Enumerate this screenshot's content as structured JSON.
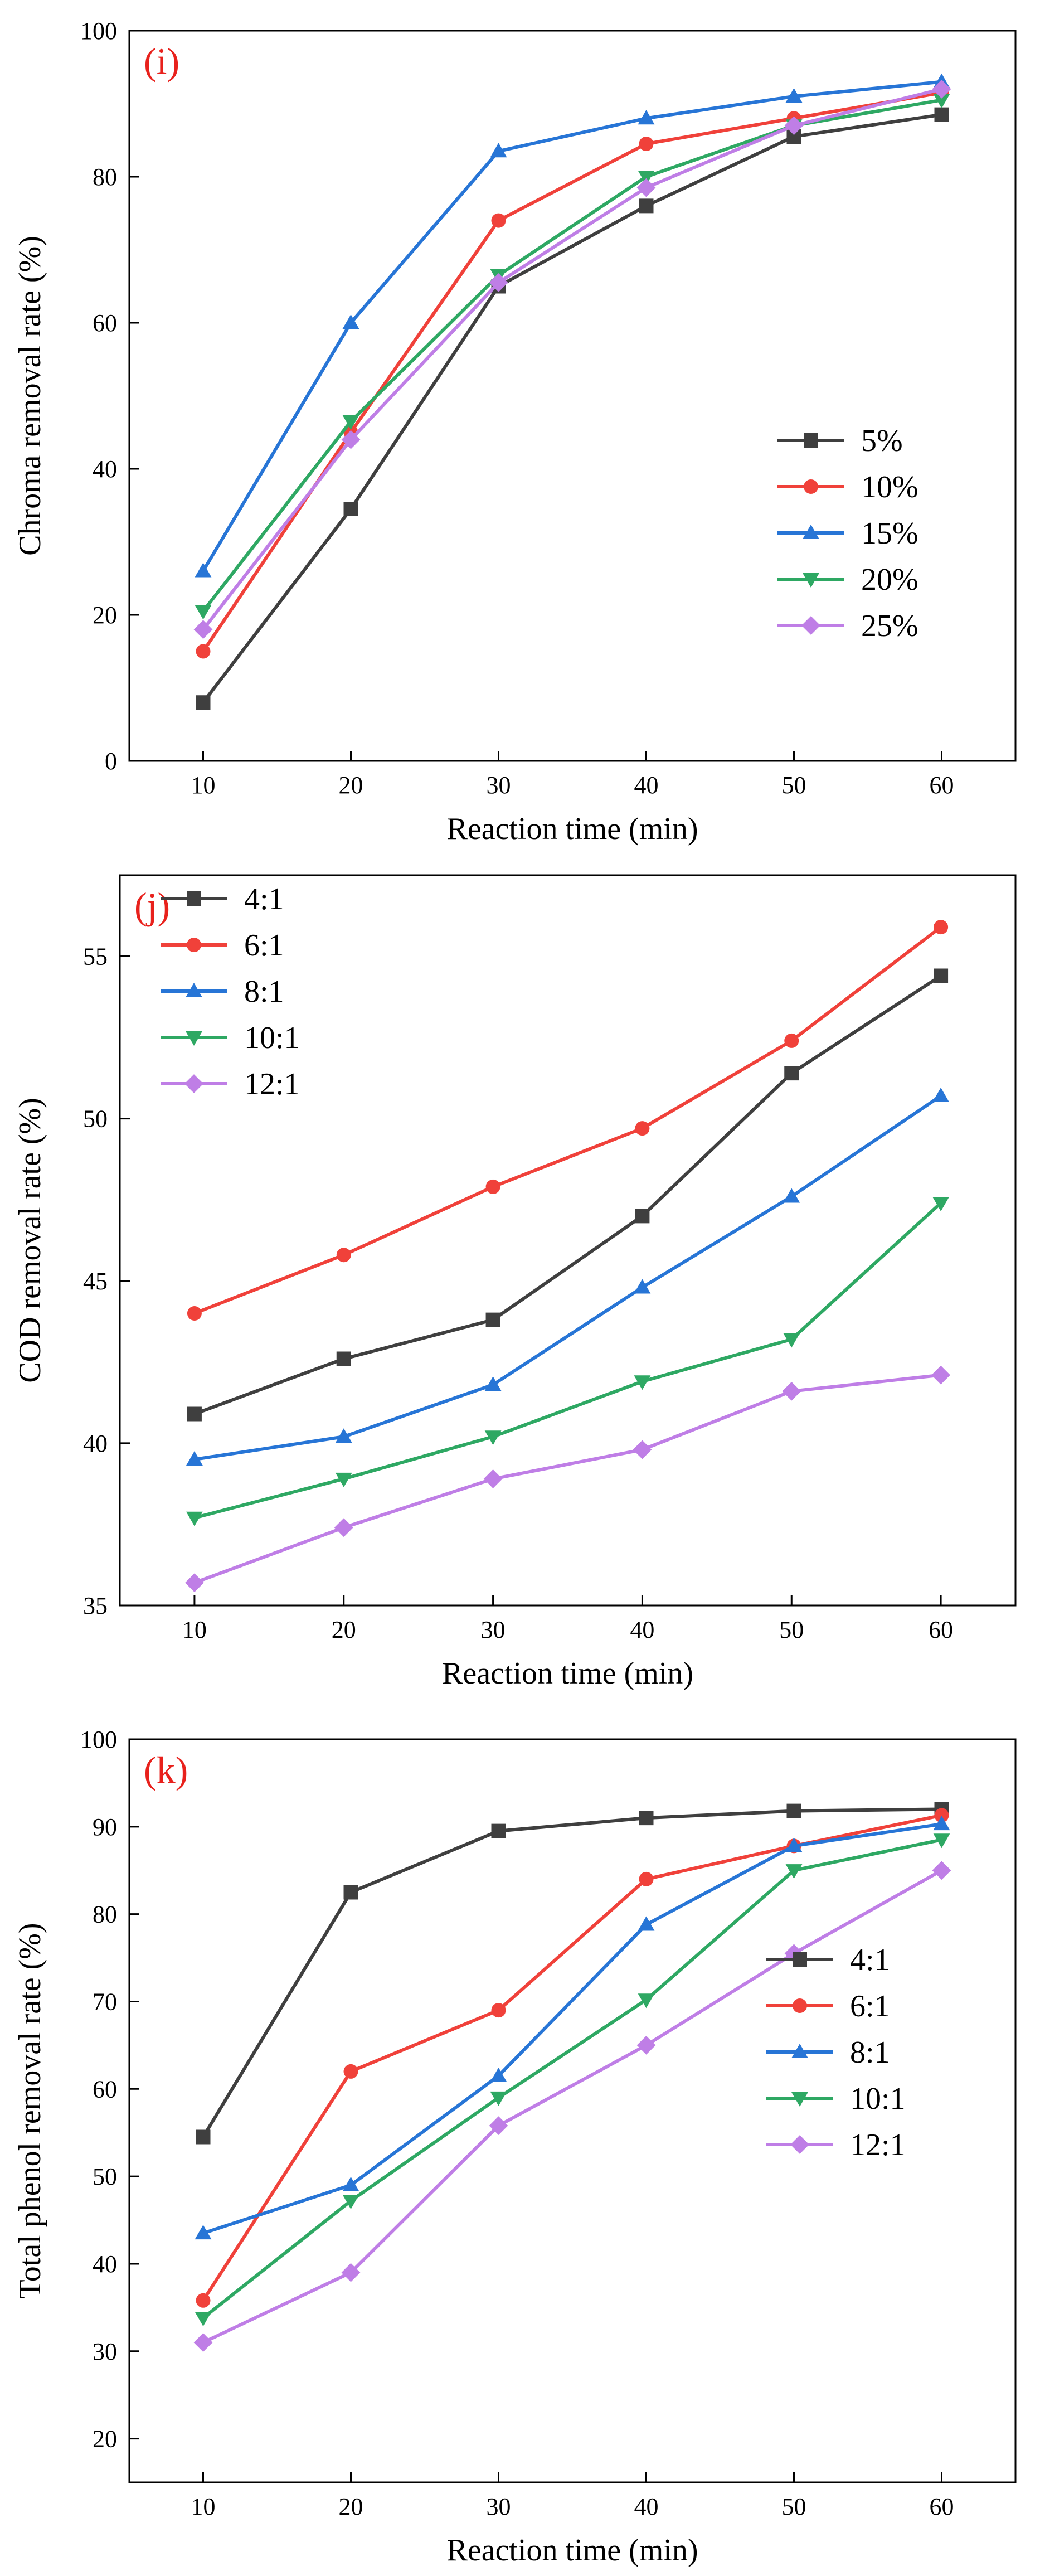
{
  "chart_data": [
    {
      "type": "line",
      "panel_tag": "(i)",
      "xlabel": "Reaction time (min)",
      "ylabel": "Chroma removal rate (%)",
      "xlim": [
        5,
        65
      ],
      "ylim": [
        0,
        100
      ],
      "xticks": [
        10,
        20,
        30,
        40,
        50,
        60
      ],
      "yticks": [
        0,
        20,
        40,
        60,
        80,
        100
      ],
      "legend_position": "lower-right",
      "x": [
        10,
        20,
        30,
        40,
        50,
        60
      ],
      "series": [
        {
          "name": "5%",
          "color": "#3f3f3f",
          "marker": "square",
          "values": [
            8,
            34.5,
            65,
            76,
            85.5,
            88.5
          ]
        },
        {
          "name": "10%",
          "color": "#f0413a",
          "marker": "circle",
          "values": [
            15,
            45,
            74,
            84.5,
            88,
            91.5
          ]
        },
        {
          "name": "15%",
          "color": "#2775d6",
          "marker": "triangle-up",
          "values": [
            26,
            60,
            83.5,
            88,
            91,
            93
          ]
        },
        {
          "name": "20%",
          "color": "#2ea863",
          "marker": "triangle-down",
          "values": [
            20.5,
            46.5,
            66.5,
            80,
            87,
            90.5
          ]
        },
        {
          "name": "25%",
          "color": "#bf7ee6",
          "marker": "diamond",
          "values": [
            18,
            44,
            65.5,
            78.5,
            87,
            92
          ]
        }
      ]
    },
    {
      "type": "line",
      "panel_tag": "(j)",
      "xlabel": "Reaction time (min)",
      "ylabel": "COD removal rate (%)",
      "xlim": [
        5,
        65
      ],
      "ylim": [
        35,
        57.5
      ],
      "xticks": [
        10,
        20,
        30,
        40,
        50,
        60
      ],
      "yticks": [
        35,
        40,
        45,
        50,
        55
      ],
      "legend_position": "top-left",
      "x": [
        10,
        20,
        30,
        40,
        50,
        60
      ],
      "series": [
        {
          "name": "4:1",
          "color": "#3f3f3f",
          "marker": "square",
          "values": [
            40.9,
            42.6,
            43.8,
            47,
            51.4,
            54.4
          ]
        },
        {
          "name": "6:1",
          "color": "#f0413a",
          "marker": "circle",
          "values": [
            44,
            45.8,
            47.9,
            49.7,
            52.4,
            55.9
          ]
        },
        {
          "name": "8:1",
          "color": "#2775d6",
          "marker": "triangle-up",
          "values": [
            39.5,
            40.2,
            41.8,
            44.8,
            47.6,
            50.7
          ]
        },
        {
          "name": "10:1",
          "color": "#2ea863",
          "marker": "triangle-down",
          "values": [
            37.7,
            38.9,
            40.2,
            41.9,
            43.2,
            47.4
          ]
        },
        {
          "name": "12:1",
          "color": "#bf7ee6",
          "marker": "diamond",
          "values": [
            35.7,
            37.4,
            38.9,
            39.8,
            41.6,
            42.1
          ]
        }
      ]
    },
    {
      "type": "line",
      "panel_tag": "(k)",
      "xlabel": "Reaction time (min)",
      "ylabel": "Total phenol removal rate (%)",
      "xlim": [
        5,
        65
      ],
      "ylim": [
        15,
        100
      ],
      "xticks": [
        10,
        20,
        30,
        40,
        50,
        60
      ],
      "yticks": [
        20,
        30,
        40,
        50,
        60,
        70,
        80,
        90,
        100
      ],
      "legend_position": "lower-right",
      "x": [
        10,
        20,
        30,
        40,
        50,
        60
      ],
      "series": [
        {
          "name": "4:1",
          "color": "#3f3f3f",
          "marker": "square",
          "values": [
            54.5,
            82.5,
            89.5,
            91,
            91.8,
            92
          ]
        },
        {
          "name": "6:1",
          "color": "#f0413a",
          "marker": "circle",
          "values": [
            35.8,
            62,
            69,
            84,
            87.8,
            91.3
          ]
        },
        {
          "name": "8:1",
          "color": "#2775d6",
          "marker": "triangle-up",
          "values": [
            43.5,
            49,
            61.5,
            78.8,
            87.8,
            90.3
          ]
        },
        {
          "name": "10:1",
          "color": "#2ea863",
          "marker": "triangle-down",
          "values": [
            33.8,
            47.2,
            59,
            70.2,
            85,
            88.5
          ]
        },
        {
          "name": "12:1",
          "color": "#bf7ee6",
          "marker": "diamond",
          "values": [
            31,
            39,
            55.8,
            65,
            75.5,
            85
          ]
        }
      ]
    }
  ]
}
